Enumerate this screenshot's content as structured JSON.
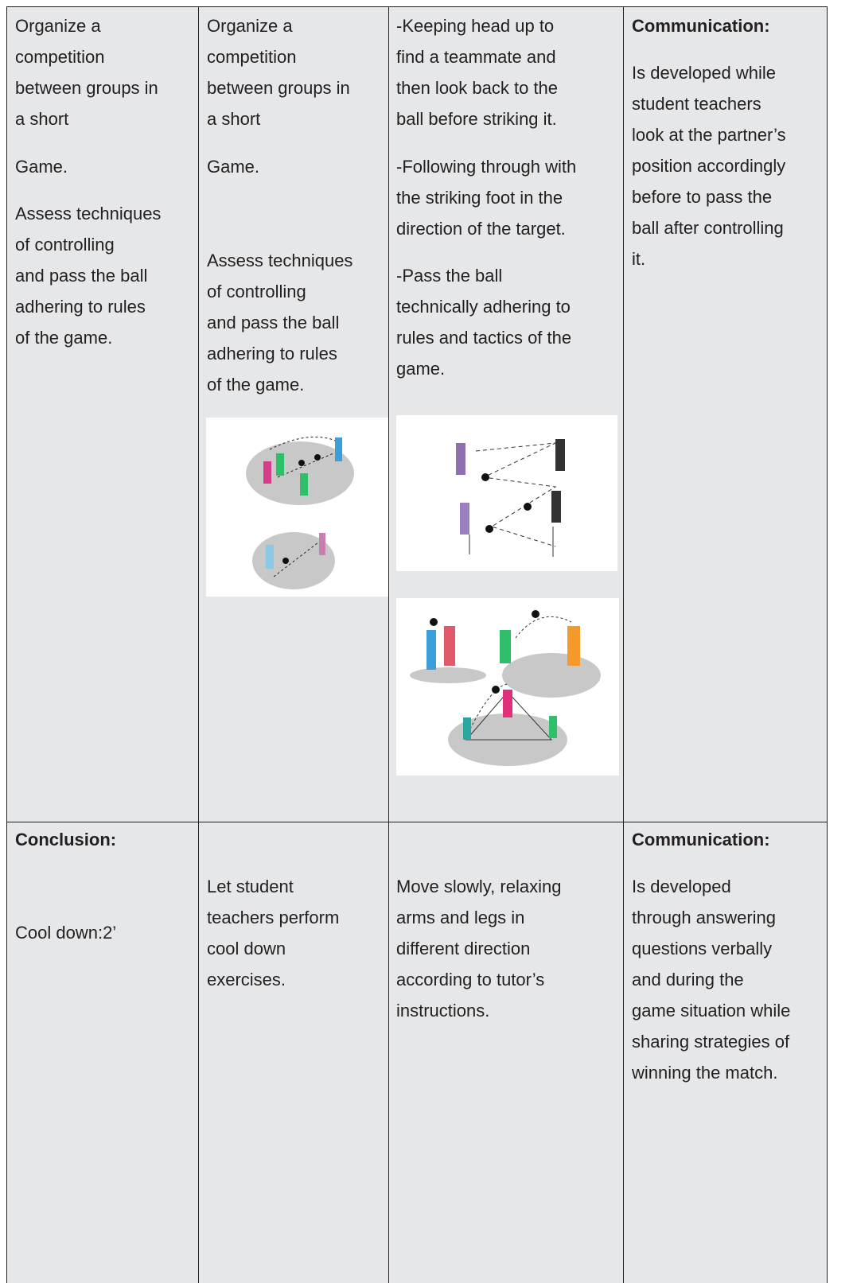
{
  "table": {
    "rows": [
      {
        "cells": [
          {
            "paragraphs": [
              [
                "Organize a",
                "competition",
                "between groups in",
                "a short"
              ],
              [
                "Game."
              ],
              [
                "Assess techniques",
                "of controlling",
                "and pass the ball",
                "adhering to rules",
                "of the game."
              ]
            ]
          },
          {
            "paragraphs": [
              [
                "Organize a",
                "competition",
                "between groups in",
                "a short"
              ],
              [
                "Game."
              ],
              [
                "Assess techniques",
                "of controlling",
                "and pass the ball",
                "adhering to rules",
                "of the game."
              ]
            ]
          },
          {
            "paragraphs": [
              [
                "-Keeping head up to",
                "find a teammate and",
                "then look back to the",
                "ball before striking it."
              ],
              [
                "-Following through with",
                "the striking foot in the",
                "direction of the target."
              ],
              [
                "-Pass the ball",
                "technically adhering to",
                "rules and tactics of the",
                "game."
              ]
            ]
          },
          {
            "heading": "Communication:",
            "paragraphs": [
              [
                "Is developed while",
                "student teachers",
                "look at the partner’s",
                "position accordingly",
                "before to pass the",
                "ball after controlling",
                "it."
              ]
            ]
          }
        ]
      },
      {
        "cells": [
          {
            "heading": "Conclusion:",
            "paragraphs": [
              [
                "Cool down:2’"
              ]
            ]
          },
          {
            "paragraphs": [
              [
                "Let student",
                "teachers perform",
                "cool down",
                "exercises."
              ]
            ]
          },
          {
            "paragraphs": [
              [
                "Move slowly, relaxing",
                "arms and legs in",
                "different direction",
                "according to tutor’s",
                "instructions."
              ]
            ]
          },
          {
            "heading": "Communication:",
            "paragraphs": [
              [
                "Is developed",
                "through answering",
                "questions verbally",
                "and during the",
                "game situation while",
                "sharing strategies of",
                "winning the match."
              ]
            ]
          }
        ]
      }
    ]
  }
}
